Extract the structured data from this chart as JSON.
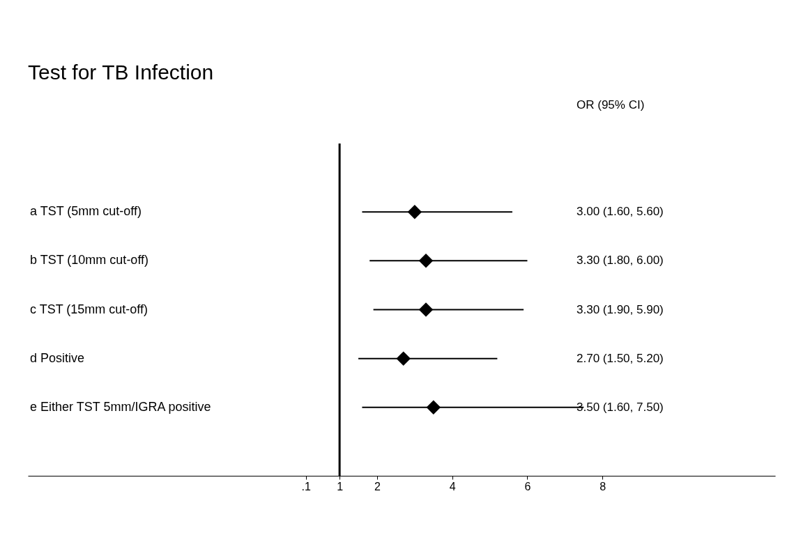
{
  "chart_data": {
    "type": "scatter",
    "title": "Test for TB Infection",
    "annotations": [
      "OR (95% CI)",
      "3.00 (1.60, 5.60)",
      "3.30 (1.80, 6.00)",
      "3.30 (1.90, 5.90)",
      "2.70 (1.50, 5.20)",
      "3.50 (1.60, 7.50)"
    ],
    "categories": [
      "a TST (5mm cut-off)",
      "b TST (10mm cut-off)",
      "c TST (15mm cut-off)",
      "d Positive",
      "e Either TST 5mm/IGRA positive"
    ],
    "orientation": "horizontal",
    "series": [
      {
        "color": "#000000",
        "values": [
          3.0,
          3.3,
          3.3,
          2.7,
          3.5
        ],
        "errors": [
          [
            1.6,
            5.6
          ],
          [
            1.8,
            6.0
          ],
          [
            1.9,
            5.9
          ],
          [
            1.5,
            5.2
          ],
          [
            1.6,
            7.5
          ]
        ]
      }
    ],
    "marker": "diamond",
    "xlim": [
      -7.3,
      12.6
    ],
    "xticks": [
      {
        "value": 0.1,
        "label": ".1"
      },
      1,
      2,
      4,
      6,
      8
    ],
    "ref_lines": [
      {
        "axis": "x",
        "value": 1,
        "color": "#000000"
      }
    ],
    "grid": false
  }
}
